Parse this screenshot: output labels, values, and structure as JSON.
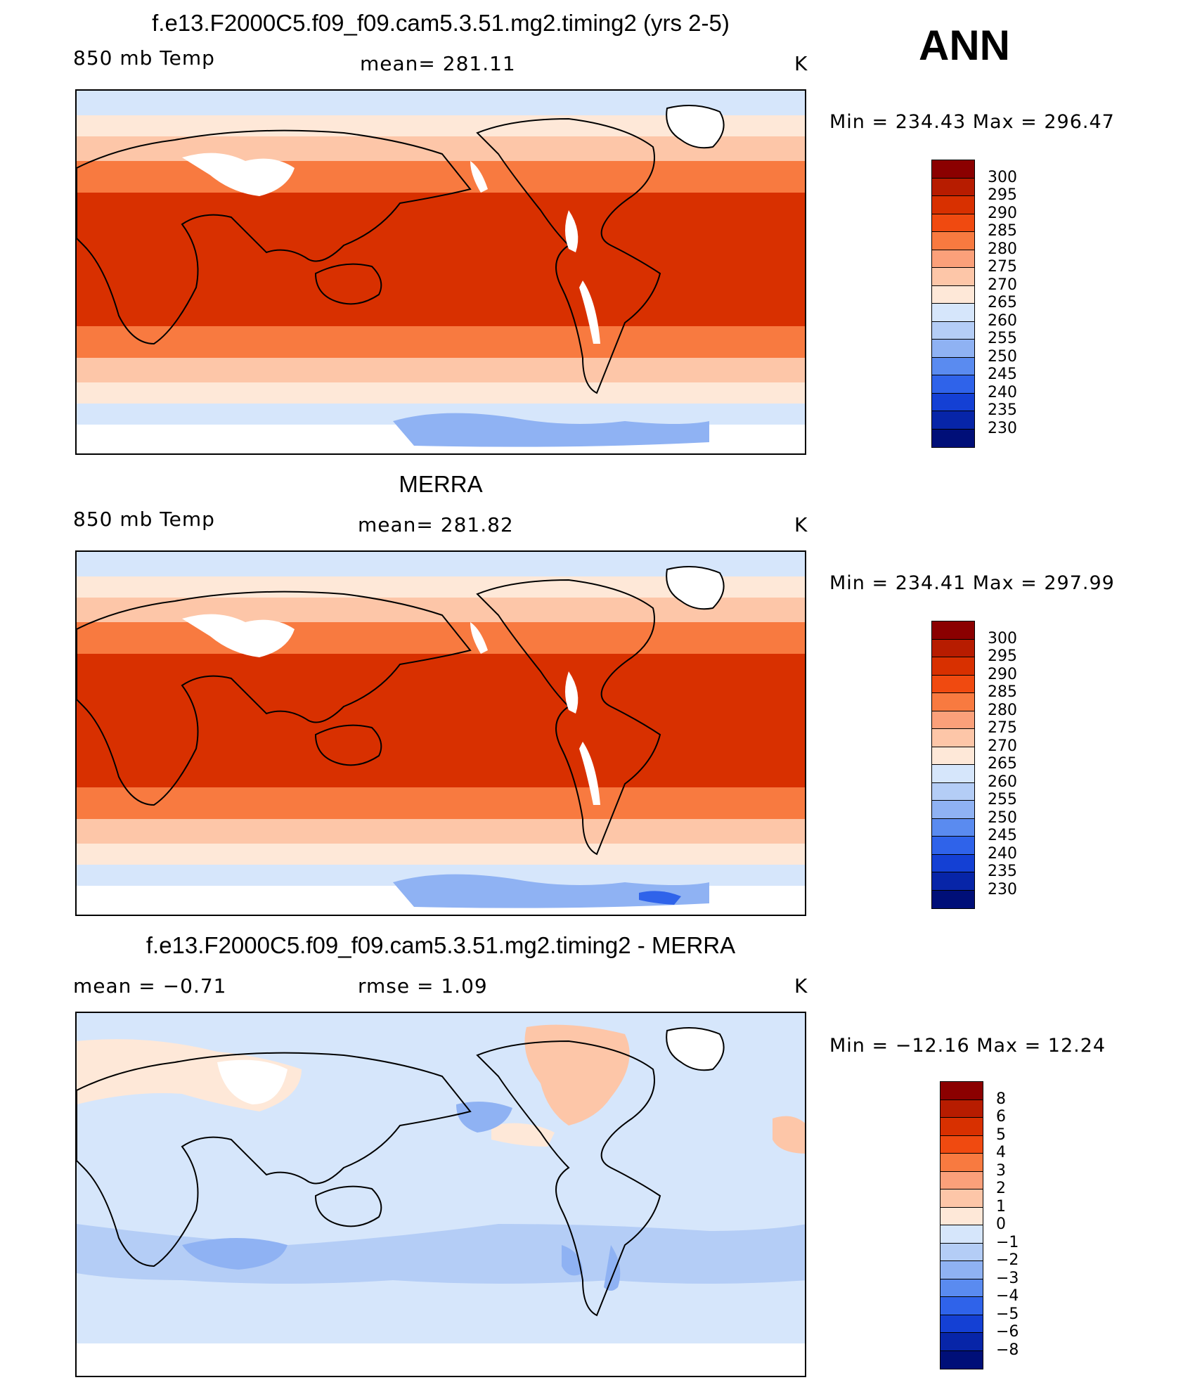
{
  "season": "ANN",
  "panels": [
    {
      "title": "f.e13.F2000C5.f09_f09.cam5.3.51.mg2.timing2 (yrs 2-5)",
      "left_label": "850 mb Temp",
      "center_label": "mean=  281.11",
      "units": "K",
      "minmax": "Min  =  234.43  Max  =  296.47",
      "kind": "abs"
    },
    {
      "title": "MERRA",
      "left_label": "850 mb Temp",
      "center_label": "mean=  281.82",
      "units": "K",
      "minmax": "Min  =  234.41  Max  =  297.99",
      "kind": "abs"
    },
    {
      "title": "f.e13.F2000C5.f09_f09.cam5.3.51.mg2.timing2 - MERRA",
      "left_label": "mean  =    −0.71",
      "center_label": "rmse  =     1.09",
      "units": "K",
      "minmax": "Min  =  −12.16  Max  =    12.24",
      "kind": "diff"
    }
  ],
  "colorbar_abs": {
    "labels": [
      "300",
      "295",
      "290",
      "285",
      "280",
      "275",
      "270",
      "265",
      "260",
      "255",
      "250",
      "245",
      "240",
      "235",
      "230"
    ],
    "colors": [
      "#8b0000",
      "#b71c00",
      "#d83000",
      "#f04a10",
      "#f87a40",
      "#fba07a",
      "#fdc6a8",
      "#fee8d8",
      "#d6e6fb",
      "#b4cdf6",
      "#8fb2f3",
      "#5a8bf0",
      "#2f63ea",
      "#1440d4",
      "#0725a8",
      "#000f78"
    ]
  },
  "colorbar_diff": {
    "labels": [
      "8",
      "6",
      "5",
      "4",
      "3",
      "2",
      "1",
      "0",
      "−1",
      "−2",
      "−3",
      "−4",
      "−5",
      "−6",
      "−8"
    ],
    "colors": [
      "#8b0000",
      "#b71c00",
      "#d83000",
      "#f04a10",
      "#f87a40",
      "#fba07a",
      "#fdc6a8",
      "#fee8d8",
      "#d6e6fb",
      "#b4cdf6",
      "#8fb2f3",
      "#5a8bf0",
      "#2f63ea",
      "#1440d4",
      "#0725a8",
      "#000f78"
    ]
  }
}
